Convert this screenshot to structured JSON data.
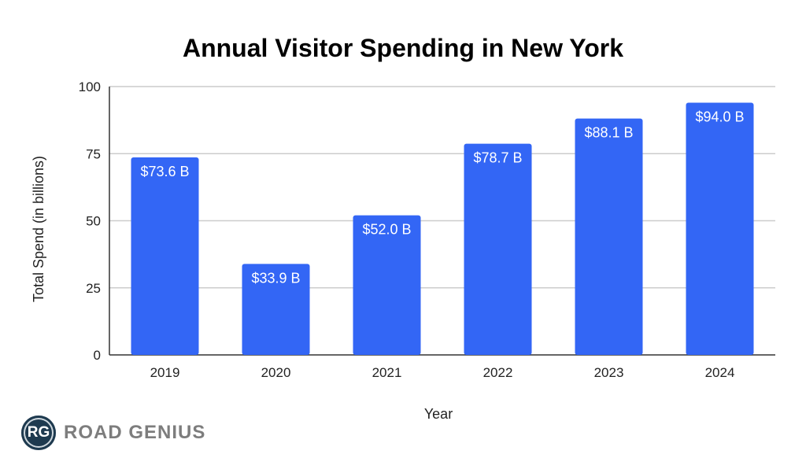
{
  "chart_data": {
    "type": "bar",
    "title": "Annual Visitor Spending in New York",
    "xlabel": "Year",
    "ylabel": "Total Spend (in billions)",
    "categories": [
      "2019",
      "2020",
      "2021",
      "2022",
      "2023",
      "2024"
    ],
    "values": [
      73.6,
      33.9,
      52.0,
      78.7,
      88.1,
      94.0
    ],
    "data_labels": [
      "$73.6 B",
      "$33.9 B",
      "$52.0 B",
      "$78.7 B",
      "$88.1 B",
      "$94.0 B"
    ],
    "ylim": [
      0,
      100
    ],
    "yticks": [
      0,
      25,
      50,
      75,
      100
    ],
    "grid": true,
    "bar_color": "#3366f5"
  },
  "logo": {
    "initials": "RG",
    "name": "ROAD GENIUS"
  }
}
